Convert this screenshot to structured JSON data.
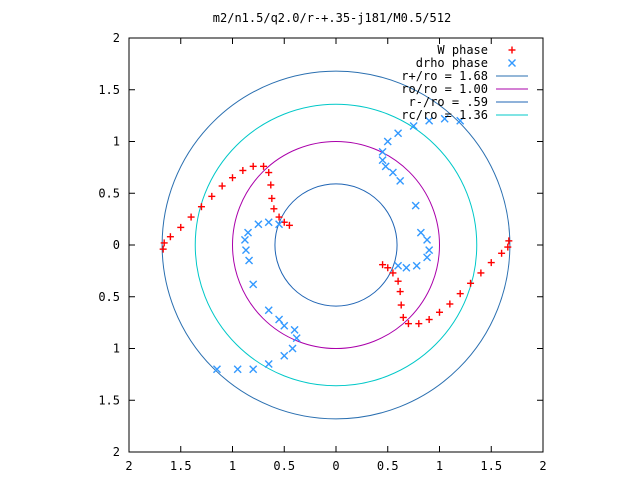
{
  "chart_data": {
    "type": "scatter",
    "title": "m2/n1.5/q2.0/r-+.35-j181/M0.5/512",
    "xlim": [
      -2,
      2
    ],
    "ylim": [
      -2,
      2
    ],
    "x_ticks": [
      -2,
      -1.5,
      -1,
      -0.5,
      0,
      0.5,
      1,
      1.5,
      2
    ],
    "y_ticks": [
      -2,
      -1.5,
      -1,
      -0.5,
      0,
      0.5,
      1,
      1.5,
      2
    ],
    "x_tick_labels": [
      "2",
      "1.5",
      "1",
      "0.5",
      "0",
      "0.5",
      "1",
      "1.5",
      "2"
    ],
    "y_tick_labels": [
      "2",
      "1.5",
      "1",
      "0.5",
      "0",
      "0.5",
      "1",
      "1.5",
      "2"
    ],
    "grid": false,
    "legend_position": "top-right",
    "legend": [
      {
        "label": "W phase",
        "kind": "points",
        "marker": "plus",
        "color": "#ff0000"
      },
      {
        "label": "drho phase",
        "kind": "points",
        "marker": "cross",
        "color": "#3399ff"
      },
      {
        "label": "r+/ro = 1.68",
        "kind": "line",
        "color": "#2a6fb0"
      },
      {
        "label": "ro/ro = 1.00",
        "kind": "line",
        "color": "#aa00aa"
      },
      {
        "label": "r-/ro = .59",
        "kind": "line",
        "color": "#1f64b4"
      },
      {
        "label": "rc/ro = 1.36",
        "kind": "line",
        "color": "#00c8c8"
      }
    ],
    "circles": [
      {
        "name": "r+/ro = 1.68",
        "r": 1.68,
        "color": "#2a6fb0"
      },
      {
        "name": "ro/ro = 1.00",
        "r": 1.0,
        "color": "#aa00aa"
      },
      {
        "name": "r-/ro = .59",
        "r": 0.59,
        "color": "#1f64b4"
      },
      {
        "name": "rc/ro = 1.36",
        "r": 1.36,
        "color": "#00c8c8"
      }
    ],
    "series": [
      {
        "name": "W phase",
        "color": "#ff0000",
        "marker": "plus",
        "points": [
          [
            -1.67,
            -0.04
          ],
          [
            -1.66,
            0.02
          ],
          [
            -1.6,
            0.08
          ],
          [
            -1.5,
            0.17
          ],
          [
            -1.4,
            0.27
          ],
          [
            -1.3,
            0.37
          ],
          [
            -1.2,
            0.47
          ],
          [
            -1.1,
            0.57
          ],
          [
            -1.0,
            0.65
          ],
          [
            -0.9,
            0.72
          ],
          [
            -0.8,
            0.76
          ],
          [
            -0.7,
            0.76
          ],
          [
            -0.65,
            0.7
          ],
          [
            -0.63,
            0.58
          ],
          [
            -0.62,
            0.45
          ],
          [
            -0.6,
            0.35
          ],
          [
            -0.55,
            0.27
          ],
          [
            -0.5,
            0.22
          ],
          [
            -0.45,
            0.19
          ],
          [
            1.67,
            0.04
          ],
          [
            1.66,
            -0.02
          ],
          [
            1.6,
            -0.08
          ],
          [
            1.5,
            -0.17
          ],
          [
            1.4,
            -0.27
          ],
          [
            1.3,
            -0.37
          ],
          [
            1.2,
            -0.47
          ],
          [
            1.1,
            -0.57
          ],
          [
            1.0,
            -0.65
          ],
          [
            0.9,
            -0.72
          ],
          [
            0.8,
            -0.76
          ],
          [
            0.7,
            -0.76
          ],
          [
            0.65,
            -0.7
          ],
          [
            0.63,
            -0.58
          ],
          [
            0.62,
            -0.45
          ],
          [
            0.6,
            -0.35
          ],
          [
            0.55,
            -0.27
          ],
          [
            0.5,
            -0.22
          ],
          [
            0.45,
            -0.19
          ]
        ]
      },
      {
        "name": "drho phase",
        "color": "#3399ff",
        "marker": "cross",
        "points": [
          [
            1.2,
            1.2
          ],
          [
            1.05,
            1.22
          ],
          [
            0.9,
            1.2
          ],
          [
            0.75,
            1.15
          ],
          [
            0.6,
            1.08
          ],
          [
            0.5,
            1.0
          ],
          [
            0.45,
            0.9
          ],
          [
            0.45,
            0.82
          ],
          [
            0.48,
            0.76
          ],
          [
            0.55,
            0.7
          ],
          [
            0.62,
            0.62
          ],
          [
            0.77,
            0.38
          ],
          [
            0.82,
            0.12
          ],
          [
            0.88,
            0.05
          ],
          [
            0.9,
            -0.05
          ],
          [
            0.88,
            -0.12
          ],
          [
            0.78,
            -0.2
          ],
          [
            0.68,
            -0.22
          ],
          [
            0.6,
            -0.2
          ],
          [
            -0.8,
            -1.2
          ],
          [
            -0.95,
            -1.2
          ],
          [
            -1.15,
            -1.2
          ],
          [
            -0.65,
            -1.15
          ],
          [
            -0.5,
            -1.07
          ],
          [
            -0.42,
            -1.0
          ],
          [
            -0.38,
            -0.9
          ],
          [
            -0.4,
            -0.82
          ],
          [
            -0.5,
            -0.78
          ],
          [
            -0.55,
            -0.72
          ],
          [
            -0.65,
            -0.63
          ],
          [
            -0.8,
            -0.38
          ],
          [
            -0.84,
            -0.15
          ],
          [
            -0.87,
            -0.05
          ],
          [
            -0.88,
            0.05
          ],
          [
            -0.85,
            0.12
          ],
          [
            -0.75,
            0.2
          ],
          [
            -0.65,
            0.22
          ],
          [
            -0.55,
            0.2
          ]
        ]
      }
    ]
  }
}
